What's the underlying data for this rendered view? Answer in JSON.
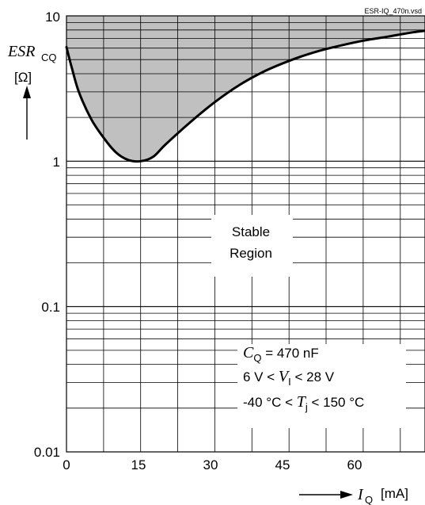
{
  "file_label": "ESR-IQ_470n.vsd",
  "y_axis": {
    "symbol": "ESR",
    "subscript": "CQ",
    "unit": "[Ω]",
    "ticks": [
      {
        "value": 10,
        "label": "10"
      },
      {
        "value": 1,
        "label": "1"
      },
      {
        "value": 0.1,
        "label": "0.1"
      },
      {
        "value": 0.01,
        "label": "0.01"
      }
    ]
  },
  "x_axis": {
    "symbol": "I",
    "subscript": "Q",
    "unit": "[mA]",
    "ticks": [
      {
        "value": 0,
        "label": "0"
      },
      {
        "value": 15,
        "label": "15"
      },
      {
        "value": 30,
        "label": "30"
      },
      {
        "value": 45,
        "label": "45"
      },
      {
        "value": 60,
        "label": "60"
      }
    ]
  },
  "region_label": [
    "Stable",
    "Region"
  ],
  "conditions": [
    {
      "symbol": "C",
      "subscript": "Q",
      "prefix": "",
      "suffix": " = 470 nF"
    },
    {
      "symbol": "V",
      "subscript": "I",
      "prefix": "6 V < ",
      "suffix": " < 28 V"
    },
    {
      "symbol": "T",
      "subscript": "j",
      "prefix": "-40 °C < ",
      "suffix": " < 150 °C"
    }
  ],
  "chart_data": {
    "type": "area",
    "scale_y": "log",
    "xlim": [
      0,
      72.5
    ],
    "ylim": [
      0.01,
      10
    ],
    "grid": true,
    "x_gridlines": [
      0,
      7.5,
      15,
      22.5,
      30,
      37.5,
      45,
      52.5,
      60,
      67.5
    ],
    "series": [
      {
        "x": [
          0,
          1,
          2.5,
          5,
          7.5,
          10,
          12.5,
          15,
          17.5,
          20,
          25,
          30,
          35,
          40,
          45,
          50,
          55,
          60,
          65,
          70,
          72.5
        ],
        "y": [
          6.1,
          4.5,
          3.0,
          1.95,
          1.45,
          1.15,
          1.02,
          1.0,
          1.07,
          1.3,
          1.85,
          2.55,
          3.35,
          4.15,
          4.9,
          5.6,
          6.2,
          6.75,
          7.2,
          7.7,
          7.9
        ]
      }
    ],
    "shaded_region": "above curve up to 10",
    "colors": {
      "shade": "#c0c0c0",
      "curve": "#000000"
    }
  }
}
